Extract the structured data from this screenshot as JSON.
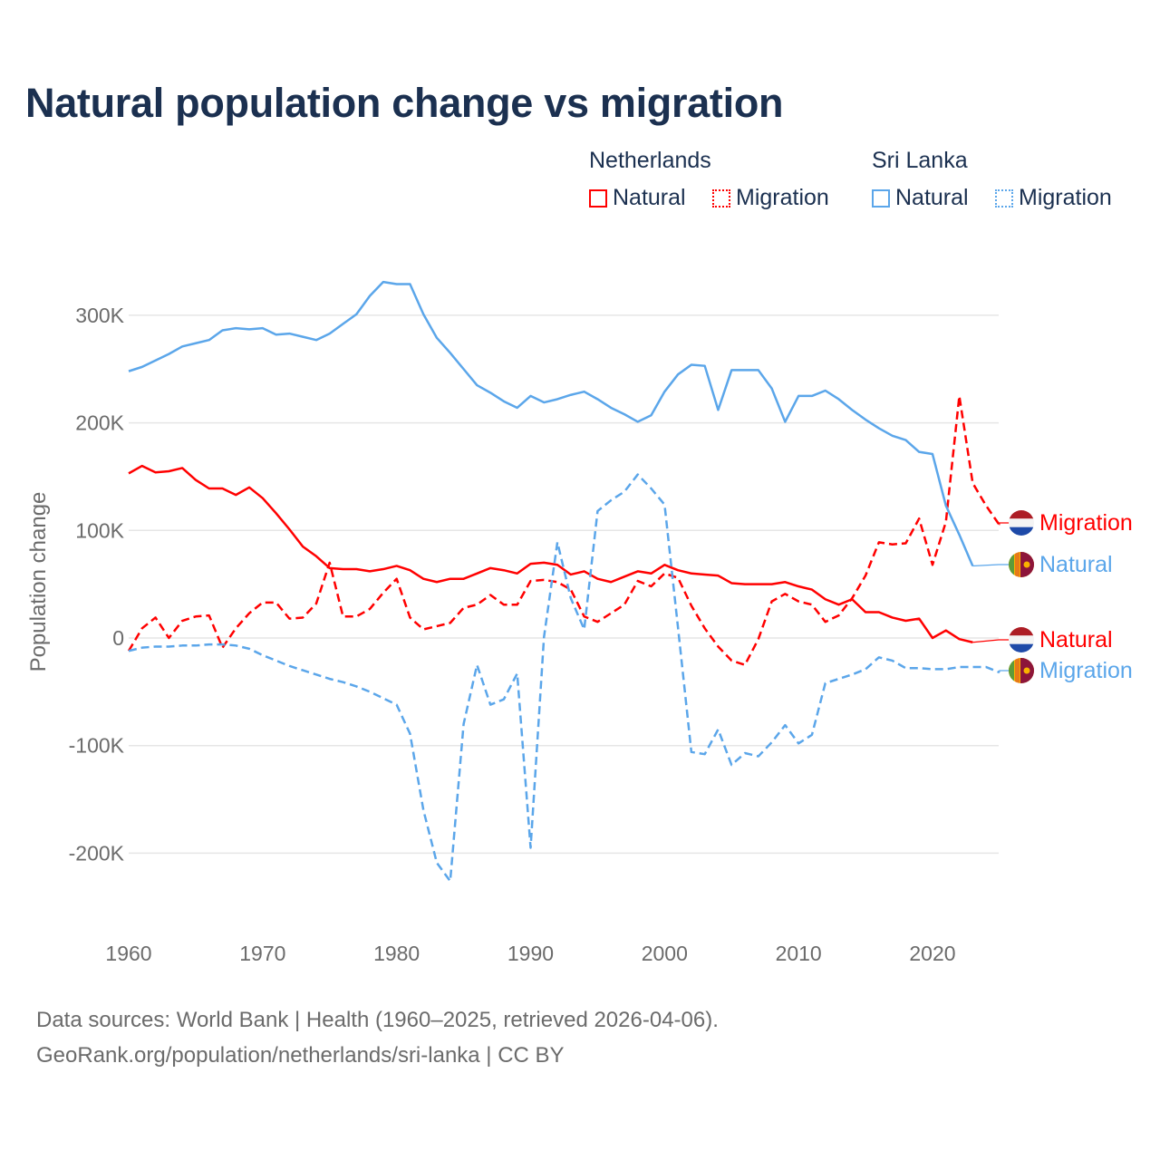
{
  "chart_data": {
    "type": "line",
    "title": "Natural population change vs migration",
    "xlabel": "",
    "ylabel": "Population change",
    "xlim": [
      1960,
      2025
    ],
    "ylim": [
      -250000,
      340000
    ],
    "x_ticks": [
      1960,
      1970,
      1980,
      1990,
      2000,
      2010,
      2020
    ],
    "x_tick_labels": [
      "1960",
      "1970",
      "1980",
      "1990",
      "2000",
      "2010",
      "2020"
    ],
    "y_ticks": [
      -200000,
      -100000,
      0,
      100000,
      200000,
      300000
    ],
    "y_tick_labels": [
      "-200K",
      "-100K",
      "0",
      "100K",
      "200K",
      "300K"
    ],
    "grid": true,
    "legend": {
      "placement": "top-right",
      "groups": [
        {
          "name": "Netherlands",
          "items": [
            "Natural",
            "Migration"
          ]
        },
        {
          "name": "Sri Lanka",
          "items": [
            "Natural",
            "Migration"
          ]
        }
      ]
    },
    "series": [
      {
        "name": "Netherlands Natural",
        "country": "Netherlands",
        "kind": "Natural",
        "color": "#ff0000",
        "dash": false,
        "start": 1960,
        "end_label": "Natural",
        "values": [
          153,
          160,
          154,
          155,
          158,
          147,
          139,
          139,
          133,
          140,
          130,
          116,
          101,
          85,
          76,
          65,
          64,
          64,
          62,
          64,
          67,
          63,
          55,
          52,
          55,
          55,
          60,
          65,
          63,
          60,
          69,
          70,
          68,
          59,
          62,
          55,
          52,
          57,
          62,
          60,
          68,
          63,
          60,
          59,
          58,
          51,
          50,
          50,
          50,
          52,
          48,
          45,
          36,
          31,
          36,
          24,
          24,
          19,
          16,
          18,
          0,
          7,
          -1,
          -4
        ]
      },
      {
        "name": "Netherlands Migration",
        "country": "Netherlands",
        "kind": "Migration",
        "color": "#ff0000",
        "dash": true,
        "start": 1960,
        "end_label": "Migration",
        "values": [
          -12,
          9,
          19,
          0,
          16,
          20,
          21,
          -9,
          9,
          23,
          33,
          33,
          18,
          19,
          32,
          70,
          20,
          20,
          27,
          42,
          55,
          19,
          8,
          11,
          14,
          28,
          31,
          40,
          31,
          31,
          53,
          54,
          52,
          45,
          20,
          15,
          23,
          31,
          53,
          48,
          60,
          56,
          30,
          9,
          -8,
          -21,
          -25,
          -1,
          34,
          41,
          34,
          31,
          15,
          21,
          37,
          58,
          89,
          87,
          88,
          111,
          68,
          108,
          225,
          144,
          123,
          105
        ]
      },
      {
        "name": "Sri Lanka Natural",
        "country": "Sri Lanka",
        "kind": "Natural",
        "color": "#5ba6ea",
        "dash": false,
        "start": 1960,
        "end_label": "Natural",
        "values": [
          248,
          252,
          258,
          264,
          271,
          274,
          277,
          286,
          288,
          287,
          288,
          282,
          283,
          280,
          277,
          283,
          292,
          301,
          318,
          331,
          329,
          329,
          301,
          279,
          265,
          250,
          235,
          228,
          220,
          214,
          225,
          219,
          222,
          226,
          229,
          222,
          214,
          208,
          201,
          207,
          229,
          245,
          254,
          253,
          212,
          249,
          249,
          249,
          232,
          201,
          225,
          225,
          230,
          222,
          212,
          203,
          195,
          188,
          184,
          173,
          171,
          123,
          96,
          67
        ]
      },
      {
        "name": "Sri Lanka Migration",
        "country": "Sri Lanka",
        "kind": "Migration",
        "color": "#5ba6ea",
        "dash": true,
        "start": 1960,
        "end_label": "Migration",
        "values": [
          -12,
          -9,
          -8,
          -8,
          -7,
          -7,
          -6,
          -6,
          -7,
          -10,
          -16,
          -21,
          -26,
          -30,
          -34,
          -38,
          -41,
          -45,
          -50,
          -56,
          -62,
          -89,
          -160,
          -209,
          -226,
          -80,
          -25,
          -62,
          -57,
          -33,
          -195,
          1,
          89,
          37,
          8,
          118,
          128,
          136,
          152,
          139,
          124,
          10,
          -106,
          -108,
          -85,
          -118,
          -107,
          -110,
          -97,
          -81,
          -98,
          -90,
          -42,
          -38,
          -34,
          -29,
          -18,
          -21,
          -28,
          -28,
          -29,
          -29,
          -27,
          -27,
          -27,
          -32
        ]
      }
    ],
    "value_unit": "thousands"
  },
  "legend": {
    "netherlands": "Netherlands",
    "sri_lanka": "Sri Lanka",
    "natural": "Natural",
    "migration": "Migration"
  },
  "footer": {
    "line1": "Data sources: World Bank | Health (1960–2025, retrieved 2026-04-06).",
    "line2": "GeoRank.org/population/netherlands/sri-lanka | CC BY"
  },
  "colors": {
    "netherlands": "#ff0000",
    "sri_lanka": "#5ba6ea",
    "title": "#1b3050"
  }
}
